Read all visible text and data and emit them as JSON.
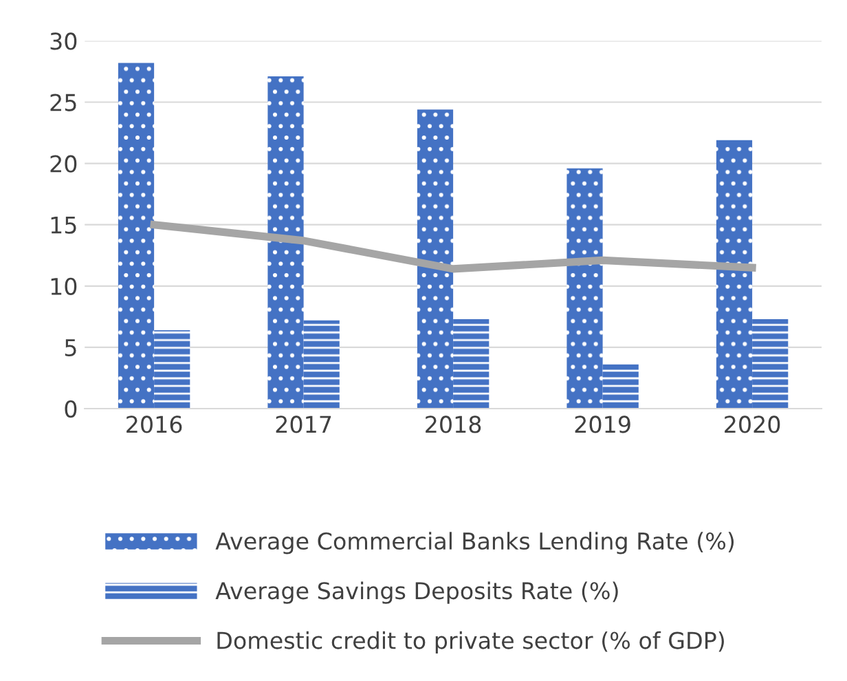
{
  "chart_data": {
    "type": "bar",
    "categories": [
      "2016",
      "2017",
      "2018",
      "2019",
      "2020"
    ],
    "series": [
      {
        "name": "Average Commercial Banks Lending Rate (%)",
        "color": "#4472c4",
        "values": [
          28.2,
          27.1,
          24.4,
          19.6,
          21.9
        ]
      },
      {
        "name": "Average Savings Deposits Rate (%)",
        "color": "#4472c4",
        "values": [
          6.4,
          7.2,
          7.3,
          3.6,
          7.3
        ]
      },
      {
        "name": "Domestic credit to private sector (% of GDP)",
        "type": "line",
        "color": "#a5a5a5",
        "values": [
          15.0,
          13.7,
          11.4,
          12.1,
          11.5
        ]
      }
    ],
    "ylim": [
      0,
      30
    ],
    "yticks": [
      0,
      5,
      10,
      15,
      20,
      25,
      30
    ],
    "grid": "y",
    "legend": "bottom"
  }
}
